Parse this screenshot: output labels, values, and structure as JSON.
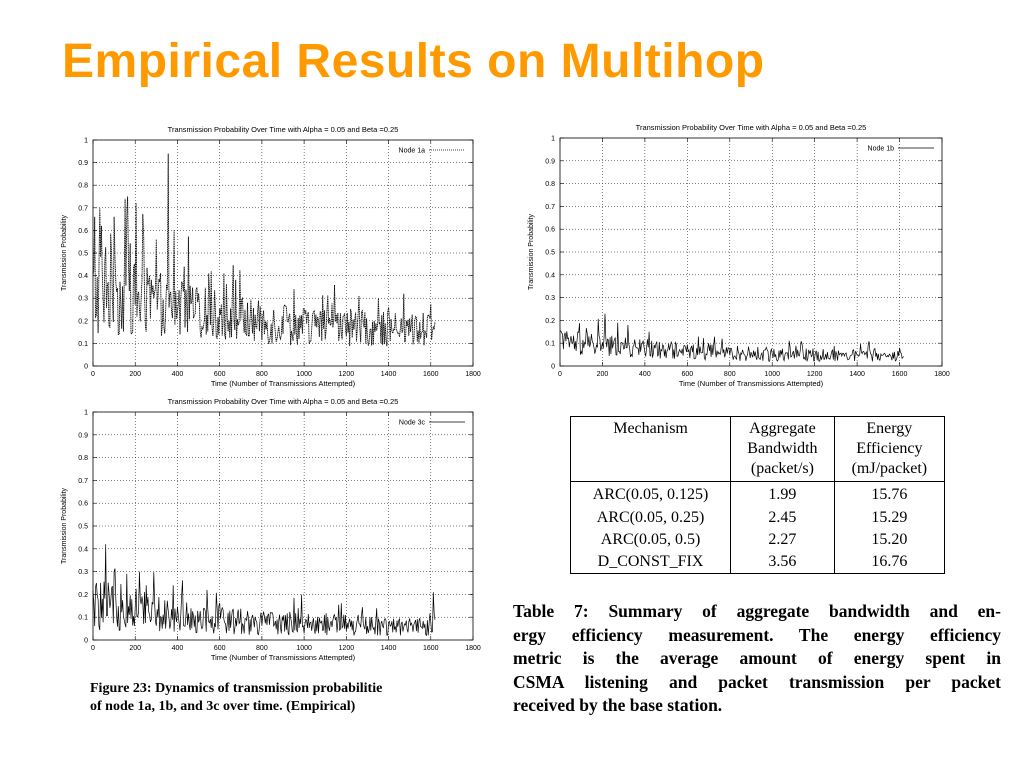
{
  "slide": {
    "title": "Empirical Results on Multihop"
  },
  "chart_data": [
    {
      "type": "line",
      "id": "node-1a",
      "title": "Transmission Probability Over Time with Alpha = 0.05 and Beta =0.25",
      "xlabel": "Time (Number of Transmissions Attempted)",
      "ylabel": "Transmission Probability",
      "xlim": [
        0,
        1800
      ],
      "ylim": [
        0,
        1
      ],
      "xticks": [
        "0",
        "200",
        "400",
        "600",
        "800",
        "1000",
        "1200",
        "1400",
        "1600",
        "1800"
      ],
      "yticks": [
        "0",
        "0.1",
        "0.2",
        "0.3",
        "0.4",
        "0.5",
        "0.6",
        "0.7",
        "0.8",
        "0.9",
        "1"
      ],
      "grid": true,
      "legend": "top-right",
      "series": [
        {
          "name": "Node 1a",
          "style": "dotted",
          "color": "#000000",
          "x_end": 1620,
          "profile": [
            [
              0,
              0.3,
              0.25
            ],
            [
              200,
              0.28,
              0.2
            ],
            [
              400,
              0.24,
              0.16
            ],
            [
              800,
              0.18,
              0.12
            ],
            [
              1200,
              0.16,
              0.1
            ],
            [
              1620,
              0.15,
              0.09
            ]
          ],
          "peaks": [
            [
              8,
              0.66
            ],
            [
              40,
              0.62
            ],
            [
              100,
              0.66
            ],
            [
              150,
              0.74
            ],
            [
              165,
              0.75
            ],
            [
              205,
              0.72
            ],
            [
              240,
              0.57
            ],
            [
              300,
              0.56
            ],
            [
              355,
              0.94
            ],
            [
              385,
              0.6
            ],
            [
              430,
              0.44
            ],
            [
              560,
              0.42
            ],
            [
              620,
              0.41
            ],
            [
              950,
              0.34
            ],
            [
              1260,
              0.31
            ],
            [
              1400,
              0.26
            ],
            [
              1470,
              0.32
            ]
          ]
        }
      ]
    },
    {
      "type": "line",
      "id": "node-1b",
      "title": "Transmission Probability Over Time with Alpha = 0.05 and Beta =0.25",
      "xlabel": "Time (Number of Transmissions Attempted)",
      "ylabel": "Transmission Probability",
      "xlim": [
        0,
        1800
      ],
      "ylim": [
        0,
        1
      ],
      "xticks": [
        "0",
        "200",
        "400",
        "600",
        "800",
        "1000",
        "1200",
        "1400",
        "1600",
        "1800"
      ],
      "yticks": [
        "0",
        "0.1",
        "0.2",
        "0.3",
        "0.4",
        "0.5",
        "0.6",
        "0.7",
        "0.8",
        "0.9",
        "1"
      ],
      "grid": true,
      "legend": "top-right",
      "series": [
        {
          "name": "Node 1b",
          "style": "solid",
          "color": "#000000",
          "x_end": 1620,
          "profile": [
            [
              0,
              0.1,
              0.07
            ],
            [
              400,
              0.07,
              0.05
            ],
            [
              900,
              0.05,
              0.04
            ],
            [
              1620,
              0.04,
              0.03
            ]
          ],
          "peaks": [
            [
              10,
              0.14
            ],
            [
              210,
              0.23
            ],
            [
              270,
              0.19
            ],
            [
              320,
              0.18
            ],
            [
              420,
              0.15
            ],
            [
              700,
              0.1
            ],
            [
              1080,
              0.11
            ],
            [
              1140,
              0.1
            ],
            [
              1450,
              0.09
            ]
          ]
        }
      ]
    },
    {
      "type": "line",
      "id": "node-3c",
      "title": "Transmission Probability Over Time with Alpha = 0.05 and Beta =0.25",
      "xlabel": "Time (Number of Transmissions Attempted)",
      "ylabel": "Transmission Probability",
      "xlim": [
        0,
        1800
      ],
      "ylim": [
        0,
        1
      ],
      "xticks": [
        "0",
        "200",
        "400",
        "600",
        "800",
        "1000",
        "1200",
        "1400",
        "1600",
        "1800"
      ],
      "yticks": [
        "0",
        "0.1",
        "0.2",
        "0.3",
        "0.4",
        "0.5",
        "0.6",
        "0.7",
        "0.8",
        "0.9",
        "1"
      ],
      "grid": true,
      "legend": "top-right",
      "series": [
        {
          "name": "Node 3c",
          "style": "solid",
          "color": "#000000",
          "x_end": 1620,
          "profile": [
            [
              0,
              0.14,
              0.14
            ],
            [
              200,
              0.13,
              0.12
            ],
            [
              400,
              0.1,
              0.09
            ],
            [
              800,
              0.07,
              0.07
            ],
            [
              1200,
              0.06,
              0.06
            ],
            [
              1620,
              0.05,
              0.05
            ]
          ],
          "peaks": [
            [
              60,
              0.42
            ],
            [
              100,
              0.3
            ],
            [
              160,
              0.29
            ],
            [
              220,
              0.3
            ],
            [
              250,
              0.24
            ],
            [
              380,
              0.24
            ],
            [
              420,
              0.2
            ],
            [
              1610,
              0.21
            ]
          ]
        }
      ]
    },
    {
      "type": "table",
      "id": "table-7",
      "columns": [
        "Mechanism",
        "Aggregate Bandwidth (packet/s)",
        "Energy Efficiency (mJ/packet)"
      ],
      "column_lines": [
        [
          "Mechanism"
        ],
        [
          "Aggregate",
          "Bandwidth",
          "(packet/s)"
        ],
        [
          "Energy",
          "Efficiency",
          "(mJ/packet)"
        ]
      ],
      "rows": [
        [
          "ARC(0.05, 0.125)",
          "1.99",
          "15.76"
        ],
        [
          "ARC(0.05, 0.25)",
          "2.45",
          "15.29"
        ],
        [
          "ARC(0.05, 0.5)",
          "2.27",
          "15.20"
        ],
        [
          "D_CONST_FIX",
          "3.56",
          "16.76"
        ]
      ]
    }
  ],
  "captions": {
    "figure": "Figure 23: Dynamics of transmission probabilitie of node 1a, 1b, and 3c over time. (Empirical)",
    "figure_lines": [
      "Figure 23:  Dynamics of transmission probabilitie",
      "of node 1a, 1b, and 3c over time.  (Empirical)"
    ],
    "table": "Table 7: Summary of aggregate bandwidth and energy efficiency measurement. The energy efficiency metric is the average amount of energy spent in CSMA listening and packet transmission per packet received by the base station.",
    "table_lines": [
      "Table 7: Summary of aggregate bandwidth and en-",
      "ergy efficiency measurement. The energy efficiency",
      "metric is the average amount of energy spent in",
      "CSMA listening and packet transmission per packet",
      "received by the base station."
    ]
  }
}
